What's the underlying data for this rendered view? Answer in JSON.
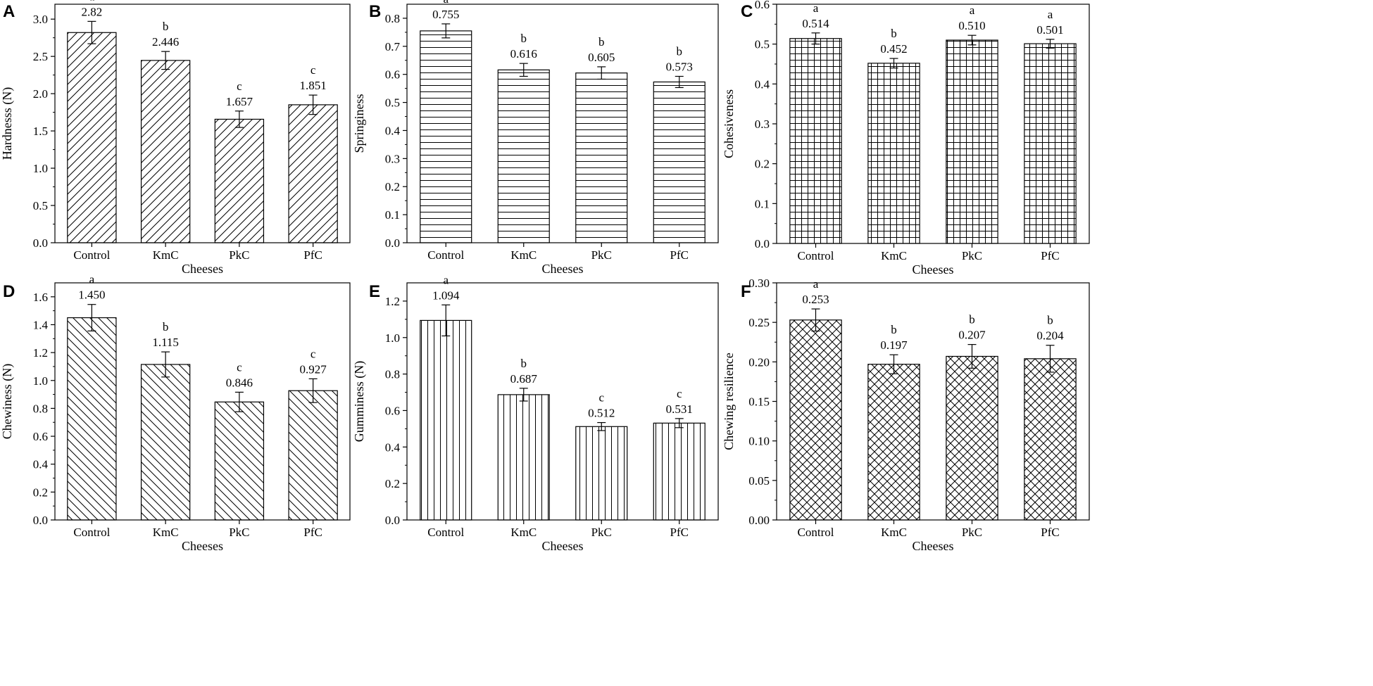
{
  "chart_data": [
    {
      "panel": "A",
      "type": "bar",
      "pattern": "diag-right",
      "categories": [
        "Control",
        "KmC",
        "PkC",
        "PfC"
      ],
      "values": [
        2.82,
        2.446,
        1.657,
        1.851
      ],
      "errors": [
        0.15,
        0.12,
        0.11,
        0.13
      ],
      "value_labels": [
        "2.82",
        "2.446",
        "1.657",
        "1.851"
      ],
      "letters": [
        "a",
        "b",
        "c",
        "c"
      ],
      "xlabel": "Cheeses",
      "ylabel": "Hardnesss (N)",
      "ylim": [
        0,
        3.2
      ],
      "yticks": [
        "0.0",
        "0.5",
        "1.0",
        "1.5",
        "2.0",
        "2.5",
        "3.0"
      ]
    },
    {
      "panel": "B",
      "type": "bar",
      "pattern": "horizontal",
      "categories": [
        "Control",
        "KmC",
        "PkC",
        "PfC"
      ],
      "values": [
        0.755,
        0.616,
        0.605,
        0.573
      ],
      "errors": [
        0.025,
        0.023,
        0.022,
        0.02
      ],
      "value_labels": [
        "0.755",
        "0.616",
        "0.605",
        "0.573"
      ],
      "letters": [
        "a",
        "b",
        "b",
        "b"
      ],
      "xlabel": "Cheeses",
      "ylabel": "Springiness",
      "ylim": [
        0,
        0.85
      ],
      "yticks": [
        "0.0",
        "0.1",
        "0.2",
        "0.3",
        "0.4",
        "0.5",
        "0.6",
        "0.7",
        "0.8"
      ]
    },
    {
      "panel": "C",
      "type": "bar",
      "pattern": "grid",
      "categories": [
        "Control",
        "KmC",
        "PkC",
        "PfC"
      ],
      "values": [
        0.514,
        0.452,
        0.51,
        0.501
      ],
      "errors": [
        0.014,
        0.012,
        0.012,
        0.011
      ],
      "value_labels": [
        "0.514",
        "0.452",
        "0.510",
        "0.501"
      ],
      "letters": [
        "a",
        "b",
        "a",
        "a"
      ],
      "xlabel": "Cheeses",
      "ylabel": "Cohesiveness",
      "ylim": [
        0,
        0.6
      ],
      "yticks": [
        "0.0",
        "0.1",
        "0.2",
        "0.3",
        "0.4",
        "0.5",
        "0.6"
      ]
    },
    {
      "panel": "D",
      "type": "bar",
      "pattern": "diag-left",
      "categories": [
        "Control",
        "KmC",
        "PkC",
        "PfC"
      ],
      "values": [
        1.45,
        1.115,
        0.846,
        0.927
      ],
      "errors": [
        0.095,
        0.09,
        0.07,
        0.085
      ],
      "value_labels": [
        "1.450",
        "1.115",
        "0.846",
        "0.927"
      ],
      "letters": [
        "a",
        "b",
        "c",
        "c"
      ],
      "xlabel": "Cheeses",
      "ylabel": "Chewiness (N)",
      "ylim": [
        0,
        1.7
      ],
      "yticks": [
        "0.0",
        "0.2",
        "0.4",
        "0.6",
        "0.8",
        "1.0",
        "1.2",
        "1.4",
        "1.6"
      ]
    },
    {
      "panel": "E",
      "type": "bar",
      "pattern": "vertical",
      "categories": [
        "Control",
        "KmC",
        "PkC",
        "PfC"
      ],
      "values": [
        1.094,
        0.687,
        0.512,
        0.531
      ],
      "errors": [
        0.085,
        0.035,
        0.022,
        0.025
      ],
      "value_labels": [
        "1.094",
        "0.687",
        "0.512",
        "0.531"
      ],
      "letters": [
        "a",
        "b",
        "c",
        "c"
      ],
      "xlabel": "Cheeses",
      "ylabel": "Gumminess (N)",
      "ylim": [
        0,
        1.3
      ],
      "yticks": [
        "0.0",
        "0.2",
        "0.4",
        "0.6",
        "0.8",
        "1.0",
        "1.2"
      ]
    },
    {
      "panel": "F",
      "type": "bar",
      "pattern": "crosshatch",
      "categories": [
        "Control",
        "KmC",
        "PkC",
        "PfC"
      ],
      "values": [
        0.253,
        0.197,
        0.207,
        0.204
      ],
      "errors": [
        0.014,
        0.012,
        0.015,
        0.017
      ],
      "value_labels": [
        "0.253",
        "0.197",
        "0.207",
        "0.204"
      ],
      "letters": [
        "a",
        "b",
        "b",
        "b"
      ],
      "xlabel": "Cheeses",
      "ylabel": "Chewing resilience",
      "ylim": [
        0,
        0.3
      ],
      "yticks": [
        "0.00",
        "0.05",
        "0.10",
        "0.15",
        "0.20",
        "0.25",
        "0.30"
      ]
    }
  ]
}
